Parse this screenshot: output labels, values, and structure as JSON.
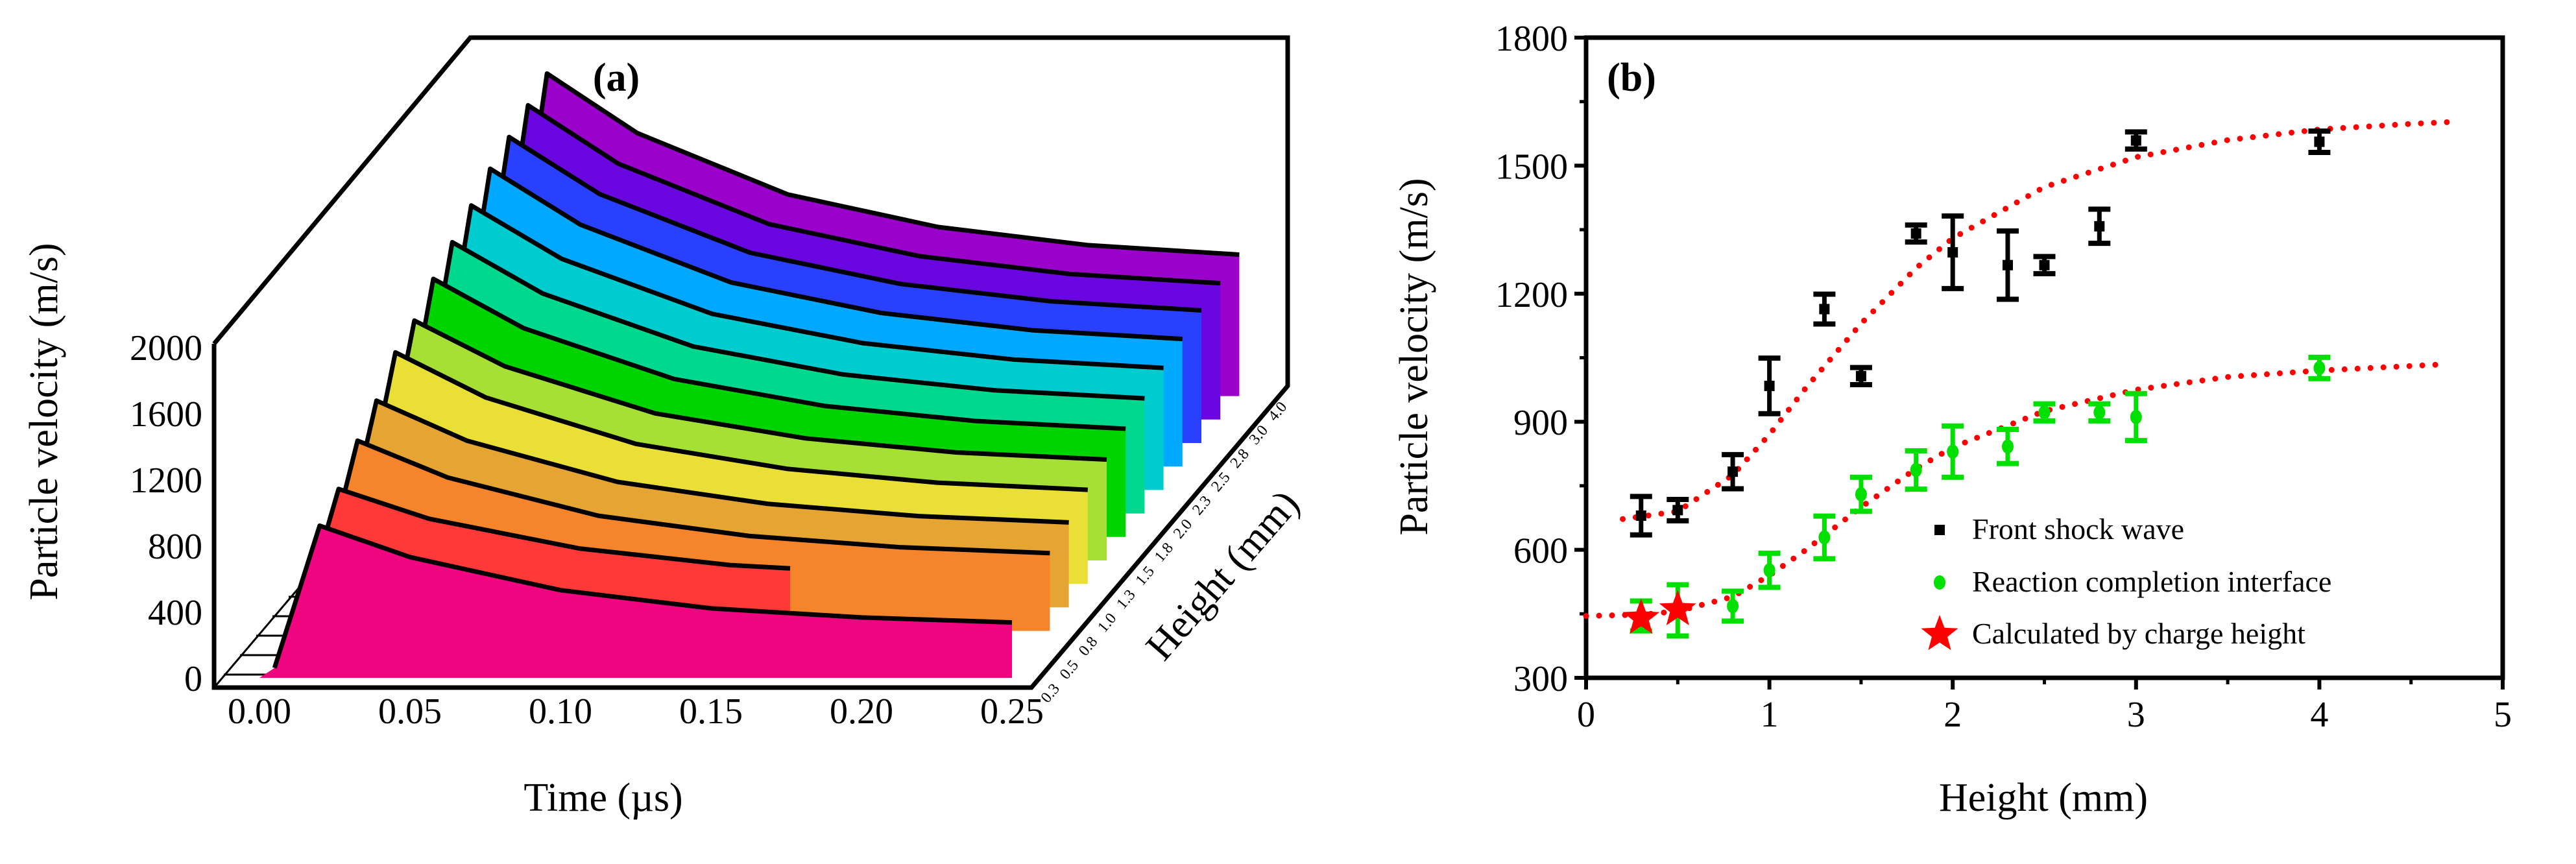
{
  "chart_data": [
    {
      "type": "area",
      "panel_label": "(a)",
      "xlabel": "Time (µs)",
      "ylabel": "Particle velocity (m/s)",
      "zlabel": "Height (mm)",
      "xlim": [
        0,
        0.25
      ],
      "ylim": [
        0,
        2000
      ],
      "xticks": [
        "0.00",
        "0.05",
        "0.10",
        "0.15",
        "0.20",
        "0.25"
      ],
      "yticks": [
        "0",
        "400",
        "800",
        "1200",
        "1600",
        "2000"
      ],
      "series": [
        {
          "height": "0.3",
          "color": "#f0047f",
          "t": [
            0,
            0.005,
            0.02,
            0.05,
            0.1,
            0.15,
            0.2,
            0.25
          ],
          "v": [
            0,
            60,
            920,
            730,
            530,
            420,
            365,
            335
          ]
        },
        {
          "height": "0.5",
          "color": "#ff3838",
          "t": [
            0,
            0.005,
            0.02,
            0.05,
            0.1,
            0.15,
            0.17
          ],
          "v": [
            0,
            60,
            1000,
            820,
            640,
            540,
            520
          ]
        },
        {
          "height": "0.8",
          "color": "#f5842a",
          "t": [
            0,
            0.005,
            0.02,
            0.05,
            0.1,
            0.15,
            0.2,
            0.25
          ],
          "v": [
            0,
            60,
            1150,
            927,
            696,
            574,
            506,
            470
          ]
        },
        {
          "height": "1.0",
          "color": "#e6a432",
          "t": [
            0,
            0.005,
            0.02,
            0.05,
            0.1,
            0.15,
            0.2,
            0.25
          ],
          "v": [
            0,
            60,
            1250,
            1008,
            759,
            626,
            552,
            514
          ]
        },
        {
          "height": "1.3",
          "color": "#e9df36",
          "t": [
            0,
            0.005,
            0.02,
            0.05,
            0.1,
            0.15,
            0.2,
            0.25
          ],
          "v": [
            0,
            60,
            1400,
            1127,
            846,
            696,
            612,
            569
          ]
        },
        {
          "height": "1.5",
          "color": "#a6e034",
          "t": [
            0,
            0.005,
            0.02,
            0.05,
            0.1,
            0.15,
            0.2,
            0.25
          ],
          "v": [
            0,
            60,
            1450,
            1174,
            889,
            738,
            653,
            610
          ]
        },
        {
          "height": "1.8",
          "color": "#00d400",
          "t": [
            0,
            0.005,
            0.02,
            0.05,
            0.1,
            0.15,
            0.2,
            0.25
          ],
          "v": [
            0,
            60,
            1560,
            1262,
            955,
            792,
            701,
            654
          ]
        },
        {
          "height": "2.0",
          "color": "#00d890",
          "t": [
            0,
            0.005,
            0.02,
            0.05,
            0.1,
            0.15,
            0.2,
            0.25
          ],
          "v": [
            0,
            60,
            1640,
            1330,
            1010,
            840,
            745,
            696
          ]
        },
        {
          "height": "2.3",
          "color": "#00ccd0",
          "t": [
            0,
            0.005,
            0.02,
            0.05,
            0.1,
            0.15,
            0.2,
            0.25
          ],
          "v": [
            0,
            60,
            1720,
            1398,
            1065,
            888,
            789,
            738
          ]
        },
        {
          "height": "2.5",
          "color": "#00a8ff",
          "t": [
            0,
            0.005,
            0.02,
            0.05,
            0.1,
            0.15,
            0.2,
            0.25
          ],
          "v": [
            0,
            60,
            1800,
            1462,
            1113,
            928,
            824,
            771
          ]
        },
        {
          "height": "2.8",
          "color": "#2a40ff",
          "t": [
            0,
            0.005,
            0.02,
            0.05,
            0.1,
            0.15,
            0.2,
            0.25
          ],
          "v": [
            0,
            60,
            1850,
            1506,
            1151,
            962,
            857,
            802
          ]
        },
        {
          "height": "3.0",
          "color": "#6a06e0",
          "t": [
            0,
            0.005,
            0.02,
            0.05,
            0.1,
            0.15,
            0.2,
            0.25
          ],
          "v": [
            0,
            60,
            1900,
            1547,
            1182,
            988,
            880,
            824
          ]
        },
        {
          "height": "4.0",
          "color": "#9a02cc",
          "t": [
            0,
            0.005,
            0.02,
            0.05,
            0.1,
            0.15,
            0.2,
            0.25
          ],
          "v": [
            0,
            60,
            1950,
            1590,
            1219,
            1022,
            912,
            855
          ]
        }
      ]
    },
    {
      "type": "scatter",
      "panel_label": "(b)",
      "xlabel": "Height (mm)",
      "ylabel": "Particle velocity (m/s)",
      "xlim": [
        0,
        5
      ],
      "ylim": [
        300,
        1800
      ],
      "xticks": [
        "0",
        "1",
        "2",
        "3",
        "4",
        "5"
      ],
      "yticks": [
        "300",
        "600",
        "900",
        "1200",
        "1500",
        "1800"
      ],
      "legend_position": "bottom-right",
      "series": [
        {
          "name": "Front shock wave",
          "marker": "square",
          "color": "#000000",
          "x": [
            0.3,
            0.5,
            0.8,
            1.0,
            1.3,
            1.5,
            1.8,
            2.0,
            2.3,
            2.5,
            2.8,
            3.0,
            4.0
          ],
          "y": [
            680,
            693,
            783,
            984,
            1164,
            1007,
            1341,
            1297,
            1267,
            1267,
            1358,
            1559,
            1556
          ],
          "err": [
            45,
            25,
            40,
            65,
            35,
            20,
            20,
            85,
            80,
            20,
            40,
            20,
            25
          ]
        },
        {
          "name": "Reaction completion interface",
          "marker": "circle",
          "color": "#00e000",
          "x": [
            0.3,
            0.5,
            0.8,
            1.0,
            1.3,
            1.5,
            1.8,
            2.0,
            2.3,
            2.5,
            2.8,
            3.0,
            4.0
          ],
          "y": [
            445,
            458,
            468,
            552,
            629,
            730,
            787,
            830,
            842,
            922,
            922,
            911,
            1026
          ],
          "err": [
            35,
            60,
            35,
            40,
            50,
            40,
            45,
            60,
            40,
            20,
            20,
            55,
            25
          ]
        },
        {
          "name": "Calculated by charge height",
          "marker": "star",
          "color": "#ff0000",
          "x": [
            0.3,
            0.5
          ],
          "y": [
            440,
            460
          ]
        }
      ],
      "fits": [
        {
          "color": "#ff0000",
          "style": "dotted",
          "x": [
            0.2,
            0.5,
            0.8,
            1.0,
            1.2,
            1.5,
            1.8,
            2.0,
            2.5,
            3.0,
            3.5,
            4.0,
            4.5,
            4.7
          ],
          "y": [
            672,
            690,
            775,
            870,
            980,
            1130,
            1260,
            1330,
            1450,
            1520,
            1560,
            1585,
            1598,
            1602
          ]
        },
        {
          "color": "#ff0000",
          "style": "dotted",
          "x": [
            0.0,
            0.3,
            0.5,
            0.8,
            1.0,
            1.2,
            1.5,
            1.8,
            2.0,
            2.5,
            3.0,
            3.5,
            4.0,
            4.7
          ],
          "y": [
            445,
            448,
            456,
            490,
            540,
            600,
            700,
            790,
            840,
            925,
            975,
            1005,
            1020,
            1035
          ]
        }
      ]
    }
  ]
}
